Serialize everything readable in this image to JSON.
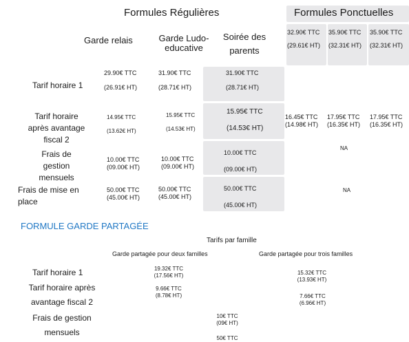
{
  "headers": {
    "regular": "Formules Régulières",
    "punctual": "Formules Ponctuelles",
    "col_relais": "Garde relais",
    "col_ludo_1": "Garde Ludo-",
    "col_ludo_2": "educative",
    "col_soiree_1": "Soirée des",
    "col_soiree_2": "parents"
  },
  "punctual_cols": {
    "c1": {
      "ttc": "32.90€ TTC",
      "ht": "(29.61€ HT)"
    },
    "c2": {
      "ttc": "35.90€ TTC",
      "ht": "(32.31€ HT)"
    },
    "c3": {
      "ttc": "35.90€ TTC",
      "ht": "(32.31€ HT)"
    }
  },
  "rows": {
    "tarif_horaire": {
      "label": "Tarif horaire 1",
      "relais": {
        "ttc": "29.90€ TTC",
        "ht": "(26.91€ HT)"
      },
      "ludo": {
        "ttc": "31.90€ TTC",
        "ht": "(28.71€ HT)"
      },
      "soiree": {
        "ttc": "31.90€ TTC",
        "ht": "(28.71€ HT)"
      }
    },
    "tarif_avantage": {
      "label_1": "Tarif horaire",
      "label_2": "après avantage",
      "label_3": "fiscal 2",
      "relais": {
        "ttc": "14.95€ TTC",
        "ht": "(13.62€ HT)"
      },
      "ludo": {
        "ttc": "15.95€ TTC",
        "ht": "(14.53€ HT)"
      },
      "soiree": {
        "ttc": "15.95€ TTC",
        "ht": "(14.53€ HT)"
      },
      "p1": {
        "ttc": "16.45€ TTC",
        "ht": "(14.98€ HT)"
      },
      "p2": {
        "ttc": "17.95€ TTC",
        "ht": "(16.35€ HT)"
      },
      "p3": {
        "ttc": "17.95€ TTC",
        "ht": "(16.35€ HT)"
      }
    },
    "frais_gestion": {
      "label_1": "Frais de",
      "label_2": "gestion",
      "label_3": "mensuels",
      "relais": {
        "ttc": "10.00€ TTC",
        "ht": "(09.00€ HT)"
      },
      "ludo": {
        "ttc": "10.00€ TTC",
        "ht": "(09.00€ HT)"
      },
      "soiree": {
        "ttc": "10.00€ TTC",
        "ht": "(09.00€ HT)"
      },
      "punctual": "NA"
    },
    "frais_mise": {
      "label_1": "Frais de mise en",
      "label_2": "place",
      "relais": {
        "ttc": "50.00€ TTC",
        "ht": "(45.00€ HT)"
      },
      "ludo": {
        "ttc": "50.00€ TTC",
        "ht": "(45.00€ HT)"
      },
      "soiree": {
        "ttc": "50.00€ TTC",
        "ht": "(45.00€ HT)"
      },
      "punctual": "NA"
    }
  },
  "shared": {
    "title": "FORMULE GARDE PARTAGÉE",
    "subtitle": "Tarifs par famille",
    "col_two": "Garde partagée pour deux familles",
    "col_three": "Garde partagée pour trois familles",
    "r1": {
      "label": "Tarif horaire 1",
      "two": {
        "ttc": "19.32€ TTC",
        "ht": "(17.56€ HT)"
      },
      "three": {
        "ttc": "15.32€ TTC",
        "ht": "(13.93€ HT)"
      }
    },
    "r2": {
      "label_1": "Tarif horaire après",
      "label_2": "avantage fiscal 2",
      "two": {
        "ttc": "9.66€ TTC",
        "ht": "(8.78€ HT)"
      },
      "three": {
        "ttc": "7.66€ TTC",
        "ht": "(6.96€ HT)"
      }
    },
    "r3": {
      "label_1": "Frais de gestion",
      "label_2": "mensuels",
      "value": {
        "ttc": "10€ TTC",
        "ht": "(09€ HT)"
      }
    },
    "r4": {
      "value_ttc": "50€ TTC"
    }
  }
}
